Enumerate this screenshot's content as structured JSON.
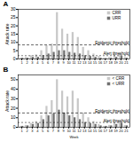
{
  "chart_data": [
    {
      "type": "bar",
      "title": "A",
      "x": [
        1,
        2,
        3,
        4,
        5,
        6,
        7,
        8,
        9,
        10,
        11,
        12,
        13,
        14,
        15,
        16,
        17,
        18,
        19,
        20,
        21
      ],
      "series": [
        {
          "name": "CRR",
          "color": "#c8c8c8",
          "values": [
            0.5,
            1.0,
            2.0,
            2.5,
            5.0,
            8.0,
            9.0,
            28.0,
            18.0,
            15.0,
            16.0,
            13.0,
            7.0,
            5.0,
            3.0,
            1.5,
            0.5,
            1.0,
            3.0,
            3.5,
            1.0
          ]
        },
        {
          "name": "URR",
          "color": "#707070",
          "values": [
            0.5,
            0.5,
            1.0,
            1.0,
            2.0,
            3.0,
            4.0,
            5.0,
            5.0,
            4.0,
            3.5,
            3.0,
            2.0,
            1.5,
            1.0,
            0.5,
            0.3,
            0.5,
            1.0,
            1.5,
            0.5
          ]
        }
      ],
      "thresholds": [
        {
          "label": "Epidemic threshold",
          "value": 8.5
        },
        {
          "label": "Alert threshold",
          "value": 2.0
        }
      ],
      "xlim": [
        0.3,
        21.7
      ],
      "xticks": [
        1,
        2,
        3,
        4,
        5,
        6,
        7,
        8,
        9,
        10,
        11,
        12,
        13,
        14,
        15,
        16,
        17,
        18,
        19,
        20,
        21
      ],
      "ylim": [
        0,
        30
      ],
      "yticks": [
        0,
        5,
        10,
        15,
        20,
        25,
        30
      ],
      "ylabel": "Attack rate",
      "legend": "upper right"
    },
    {
      "type": "bar",
      "title": "B",
      "x": [
        1,
        2,
        3,
        4,
        5,
        6,
        7,
        8,
        9,
        10,
        11,
        12,
        13,
        14,
        15,
        16,
        17,
        18,
        19,
        20,
        21
      ],
      "series": [
        {
          "name": "< CRR",
          "color": "#c8c8c8",
          "values": [
            1.0,
            2.0,
            4.0,
            6.0,
            12.0,
            22.0,
            28.0,
            50.0,
            38.0,
            32.0,
            38.0,
            30.0,
            15.0,
            10.0,
            6.0,
            3.0,
            1.0,
            2.0,
            5.0,
            6.0,
            2.0
          ]
        },
        {
          "name": "< URR",
          "color": "#707070",
          "values": [
            1.0,
            1.5,
            3.0,
            4.0,
            8.0,
            12.0,
            14.0,
            18.0,
            15.0,
            12.0,
            10.0,
            8.0,
            5.0,
            4.0,
            3.0,
            1.5,
            1.0,
            1.5,
            3.0,
            4.0,
            1.5
          ]
        }
      ],
      "thresholds": [
        {
          "label": "Epidemic threshold",
          "value": 15.0
        },
        {
          "label": "Alert threshold",
          "value": 5.0
        }
      ],
      "xlim": [
        0.3,
        21.7
      ],
      "xticks": [
        1,
        2,
        3,
        4,
        5,
        6,
        7,
        8,
        9,
        10,
        11,
        12,
        13,
        14,
        15,
        16,
        17,
        18,
        19,
        20,
        21
      ],
      "ylim": [
        0,
        55
      ],
      "yticks": [
        0,
        10,
        20,
        30,
        40,
        50
      ],
      "xlabel": "Week",
      "ylabel": "Attack rate",
      "legend": "upper right"
    }
  ]
}
